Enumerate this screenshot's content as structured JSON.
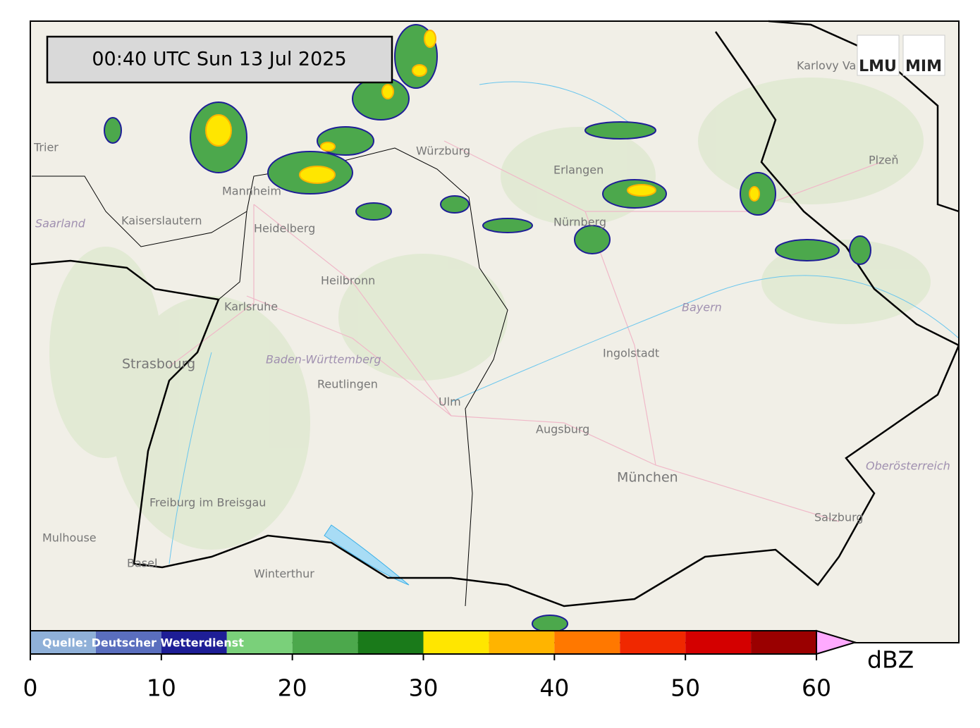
{
  "timestamp": "00:40 UTC  Sun 13 Jul 2025",
  "source": "Quelle: Deutscher Wetterdienst",
  "logos": [
    "LMU",
    "MIM"
  ],
  "places": [
    "Trier",
    "Mannheim",
    "Kaiserslautern",
    "Saarland",
    "Heidelberg",
    "Karlsruhe",
    "Heilbronn",
    "Würzburg",
    "Erlangen",
    "Nürnberg",
    "Karlovy Vary",
    "Plzeň",
    "Bayern",
    "Ingolstadt",
    "Baden-Württemberg",
    "Reutlingen",
    "Strasbourg",
    "Ulm",
    "Augsburg",
    "München",
    "Oberösterreich",
    "Freiburg im Breisgau",
    "Mulhouse",
    "Basel",
    "Winterthur",
    "Salzburg"
  ],
  "colorbar": {
    "unit": "dBZ",
    "bounds": [
      0,
      5,
      10,
      15,
      20,
      25,
      30,
      35,
      40,
      45,
      50,
      55,
      60
    ],
    "colors": [
      "#8fb0d8",
      "#5a6ebe",
      "#1e1e96",
      "#7ad07a",
      "#4ca84c",
      "#1a7a1a",
      "#ffe600",
      "#ffb400",
      "#ff7800",
      "#f02800",
      "#d40000",
      "#9a0000"
    ],
    "extend_color": "#ffaaff",
    "ticks": [
      0,
      10,
      20,
      30,
      40,
      50,
      60
    ]
  }
}
